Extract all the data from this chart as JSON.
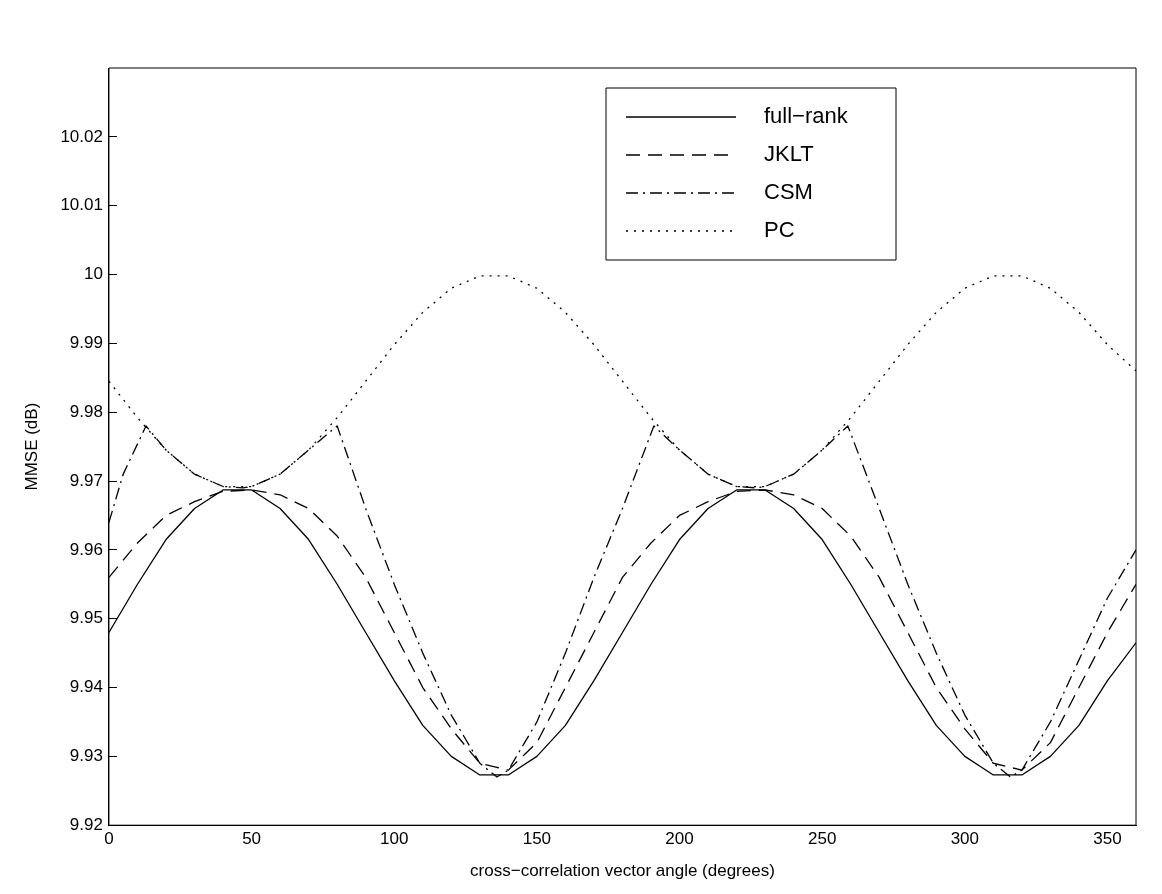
{
  "chart_data": {
    "type": "line",
    "xlabel": "cross−correlation vector angle (degrees)",
    "ylabel": "MMSE (dB)",
    "xlim": [
      0,
      360
    ],
    "xticks": [
      0,
      50,
      100,
      150,
      200,
      250,
      300,
      350
    ],
    "ylim": [
      9.92,
      10.03
    ],
    "yticks": [
      9.92,
      9.93,
      9.94,
      9.95,
      9.96,
      9.97,
      9.98,
      9.99,
      10,
      10.01,
      10.02
    ],
    "grid": false,
    "legend": "top right",
    "marker": "none",
    "series": [
      {
        "name": "full−rank",
        "color": "#000000",
        "line_style": "solid",
        "x": [
          0,
          10,
          20,
          30,
          40,
          50,
          60,
          70,
          80,
          90,
          100,
          110,
          120,
          130,
          140,
          150,
          160,
          170,
          180,
          190,
          200,
          210,
          220,
          230,
          240,
          250,
          260,
          270,
          280,
          290,
          300,
          310,
          320,
          330,
          340,
          350,
          360
        ],
        "values": [
          9.948,
          9.955,
          9.9615,
          9.966,
          9.9687,
          9.9687,
          9.966,
          9.9615,
          9.955,
          9.948,
          9.941,
          9.9345,
          9.93,
          9.9273,
          9.9273,
          9.93,
          9.9345,
          9.941,
          9.948,
          9.955,
          9.9615,
          9.966,
          9.9687,
          9.9687,
          9.966,
          9.9615,
          9.955,
          9.948,
          9.941,
          9.9345,
          9.93,
          9.9273,
          9.9273,
          9.93,
          9.9345,
          9.941,
          9.9465
        ]
      },
      {
        "name": "JKLT",
        "color": "#000000",
        "line_style": "dashed",
        "x": [
          0,
          10,
          20,
          30,
          40,
          50,
          60,
          70,
          80,
          90,
          100,
          110,
          120,
          130,
          140,
          150,
          160,
          170,
          180,
          190,
          200,
          210,
          220,
          230,
          240,
          250,
          260,
          270,
          280,
          290,
          300,
          310,
          320,
          330,
          340,
          350,
          360
        ],
        "values": [
          9.956,
          9.961,
          9.965,
          9.967,
          9.9685,
          9.9687,
          9.968,
          9.966,
          9.962,
          9.956,
          9.948,
          9.94,
          9.934,
          9.929,
          9.928,
          9.932,
          9.94,
          9.948,
          9.956,
          9.961,
          9.965,
          9.967,
          9.9685,
          9.9687,
          9.968,
          9.966,
          9.962,
          9.956,
          9.948,
          9.94,
          9.934,
          9.929,
          9.928,
          9.932,
          9.94,
          9.948,
          9.955
        ]
      },
      {
        "name": "CSM",
        "color": "#000000",
        "line_style": "dashdot",
        "x": [
          0,
          5,
          13,
          20,
          30,
          40,
          47,
          50,
          60,
          70,
          80,
          90,
          100,
          110,
          120,
          130,
          136,
          140,
          150,
          160,
          170,
          180,
          191,
          200,
          210,
          220,
          227,
          230,
          240,
          250,
          259,
          270,
          280,
          290,
          300,
          310,
          316,
          320,
          330,
          340,
          350,
          360
        ],
        "values": [
          9.964,
          9.971,
          9.978,
          9.9745,
          9.971,
          9.9692,
          9.969,
          9.9692,
          9.971,
          9.9745,
          9.978,
          9.966,
          9.955,
          9.945,
          9.936,
          9.929,
          9.927,
          9.928,
          9.935,
          9.945,
          9.956,
          9.966,
          9.978,
          9.9745,
          9.971,
          9.9692,
          9.969,
          9.9692,
          9.971,
          9.9745,
          9.978,
          9.966,
          9.955,
          9.945,
          9.936,
          9.929,
          9.927,
          9.928,
          9.935,
          9.944,
          9.953,
          9.96
        ]
      },
      {
        "name": "PC",
        "color": "#000000",
        "line_style": "dotted",
        "x": [
          0,
          10,
          20,
          30,
          40,
          50,
          60,
          70,
          80,
          90,
          100,
          110,
          120,
          130,
          140,
          150,
          160,
          170,
          180,
          190,
          200,
          210,
          220,
          230,
          240,
          250,
          260,
          270,
          280,
          290,
          300,
          310,
          320,
          330,
          340,
          350,
          360
        ],
        "values": [
          9.9845,
          9.9792,
          9.9745,
          9.971,
          9.9692,
          9.9692,
          9.971,
          9.9745,
          9.9792,
          9.9845,
          9.9898,
          9.9945,
          9.998,
          9.9998,
          9.9998,
          9.998,
          9.9945,
          9.9898,
          9.9845,
          9.9792,
          9.9745,
          9.971,
          9.9692,
          9.9692,
          9.971,
          9.9745,
          9.9792,
          9.9845,
          9.9898,
          9.9945,
          9.998,
          9.9998,
          9.9998,
          9.998,
          9.9945,
          9.9898,
          9.986
        ]
      }
    ]
  }
}
